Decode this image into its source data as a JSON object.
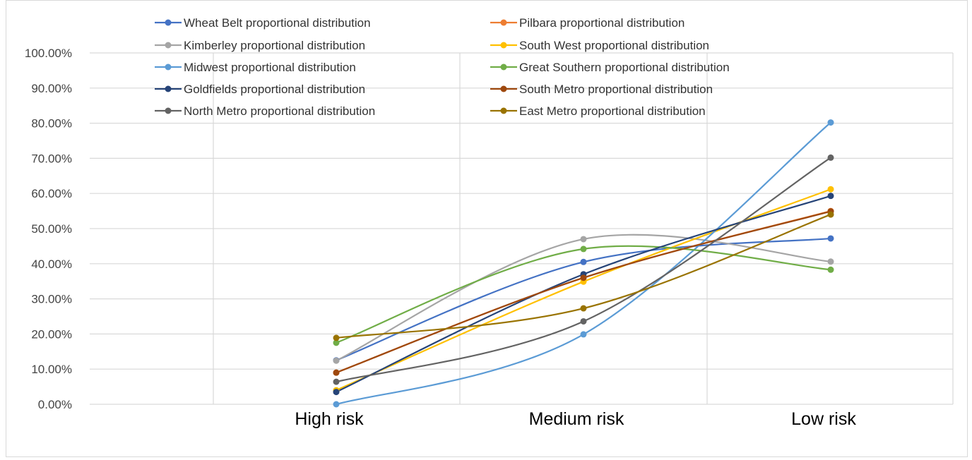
{
  "chart_data": {
    "type": "line",
    "title": "",
    "xlabel": "",
    "ylabel": "",
    "categories": [
      "High risk",
      "Medium risk",
      "Low risk"
    ],
    "ylim": [
      0,
      1
    ],
    "y_ticks": [
      "0.00%",
      "10.00%",
      "20.00%",
      "30.00%",
      "40.00%",
      "50.00%",
      "60.00%",
      "70.00%",
      "80.00%",
      "90.00%",
      "100.00%"
    ],
    "grid": true,
    "legend_position": "top",
    "smooth": true,
    "series": [
      {
        "name": "Wheat Belt proportional distribution",
        "color": "#4472C4",
        "values": [
          0.125,
          0.405,
          0.472
        ]
      },
      {
        "name": "Pilbara proportional distribution",
        "color": "#ED7D31",
        "values": [
          0.09,
          0.36,
          0.55
        ]
      },
      {
        "name": "Kimberley proportional distribution",
        "color": "#A5A5A5",
        "values": [
          0.124,
          0.47,
          0.406
        ]
      },
      {
        "name": "South West proportional distribution",
        "color": "#FFC000",
        "values": [
          0.04,
          0.349,
          0.612
        ]
      },
      {
        "name": "Midwest proportional distribution",
        "color": "#5B9BD5",
        "values": [
          0.0,
          0.199,
          0.802
        ]
      },
      {
        "name": "Great Southern proportional distribution",
        "color": "#70AD47",
        "values": [
          0.175,
          0.442,
          0.383
        ]
      },
      {
        "name": "Goldfields proportional distribution",
        "color": "#264478",
        "values": [
          0.035,
          0.37,
          0.593
        ]
      },
      {
        "name": "South Metro proportional distribution",
        "color": "#9E480E",
        "values": [
          0.09,
          0.36,
          0.549
        ]
      },
      {
        "name": "North Metro proportional distribution",
        "color": "#636363",
        "values": [
          0.064,
          0.236,
          0.702
        ]
      },
      {
        "name": "East Metro proportional distribution",
        "color": "#997300",
        "values": [
          0.189,
          0.273,
          0.54
        ]
      }
    ]
  }
}
